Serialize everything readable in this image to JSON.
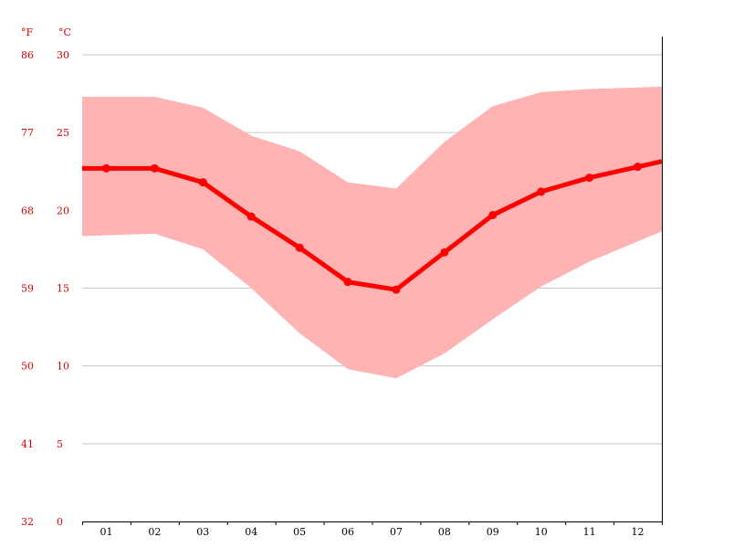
{
  "chart_data": {
    "type": "line",
    "title": "",
    "xlabel": "",
    "ylabel": "",
    "unit_f": "°F",
    "unit_c": "°C",
    "categories": [
      "01",
      "02",
      "03",
      "04",
      "05",
      "06",
      "07",
      "08",
      "09",
      "10",
      "11",
      "12"
    ],
    "ylim": [
      0,
      30
    ],
    "yticks_c": [
      "0",
      "5",
      "10",
      "15",
      "20",
      "25",
      "30"
    ],
    "yticks_f": [
      "32",
      "41",
      "50",
      "59",
      "68",
      "77",
      "86"
    ],
    "grid": true,
    "series": [
      {
        "role": "mean",
        "values": [
          22.7,
          22.7,
          21.8,
          19.6,
          17.6,
          15.4,
          14.9,
          17.3,
          19.7,
          21.2,
          22.1,
          22.8
        ]
      },
      {
        "role": "max",
        "values": [
          27.3,
          27.3,
          26.6,
          24.8,
          23.8,
          21.8,
          21.4,
          24.4,
          26.7,
          27.6,
          27.8,
          27.9
        ]
      },
      {
        "role": "min",
        "values": [
          18.4,
          18.5,
          17.5,
          15.0,
          12.1,
          9.8,
          9.2,
          10.8,
          13.0,
          15.1,
          16.7,
          18.0
        ]
      }
    ],
    "colors": {
      "line": "#ff0000",
      "band": "#ffb3b3",
      "grid": "#c8c8c8",
      "axis_text": "#dd0000",
      "x_text": "#000000"
    }
  }
}
